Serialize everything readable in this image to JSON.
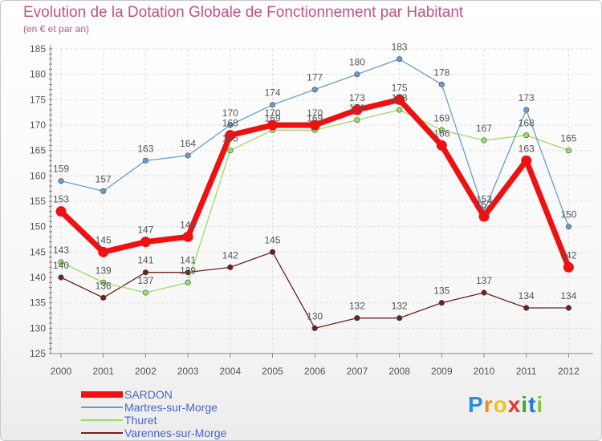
{
  "header": {
    "title": "Evolution de la Dotation Globale de Fonctionnement par Habitant",
    "subtitle": "(en € et par an)"
  },
  "chart_data": {
    "type": "line",
    "title": "Evolution de la Dotation Globale de Fonctionnement par Habitant",
    "subtitle": "(en € et par an)",
    "x": [
      "2000",
      "2001",
      "2002",
      "2003",
      "2004",
      "2005",
      "2006",
      "2007",
      "2008",
      "2009",
      "2010",
      "2011",
      "2012"
    ],
    "ylim": [
      125,
      185
    ],
    "yticks": [
      125,
      130,
      135,
      140,
      145,
      150,
      155,
      160,
      165,
      170,
      175,
      180,
      185
    ],
    "grid": true,
    "legend_position": "bottom-left",
    "series": [
      {
        "name": "SARDON",
        "color": "#ee1111",
        "values": [
          153,
          145,
          147,
          148,
          168,
          170,
          170,
          173,
          175,
          166,
          152,
          163,
          142
        ]
      },
      {
        "name": "Martres-sur-Morge",
        "color": "#6a9ccb",
        "values": [
          159,
          157,
          163,
          164,
          170,
          174,
          177,
          180,
          183,
          178,
          153,
          173,
          150
        ]
      },
      {
        "name": "Thuret",
        "color": "#99dd66",
        "values": [
          143,
          139,
          137,
          139,
          165,
          169,
          169,
          171,
          173,
          169,
          167,
          168,
          165
        ]
      },
      {
        "name": "Varennes-sur-Morge",
        "color": "#6b2222",
        "values": [
          140,
          136,
          141,
          141,
          142,
          145,
          130,
          132,
          132,
          135,
          137,
          134,
          134
        ]
      }
    ]
  },
  "logo": {
    "letters": [
      "P",
      "r",
      "o",
      "x",
      "i",
      "t",
      "i"
    ],
    "colors": [
      "#2a8fd8",
      "#f08a1c",
      "#f4c21c",
      "#e43a2a",
      "#3aaa3a",
      "#1f7fc8",
      "#88c23a"
    ]
  }
}
